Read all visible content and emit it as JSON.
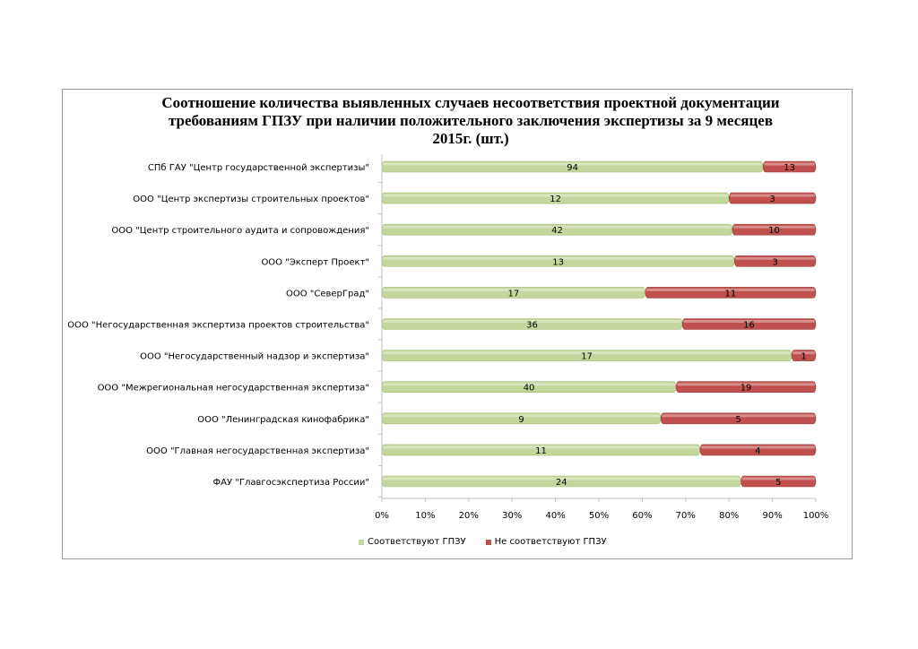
{
  "chart_data": {
    "type": "bar",
    "orientation": "horizontal",
    "stacked": "percent",
    "title_lines": [
      "Соотношение количества выявленных случаев несоответствия проектной документации",
      "требованиям ГПЗУ при наличии положительного заключения экспертизы  за 9 месяцев",
      "2015г.  (шт.)"
    ],
    "categories": [
      "СПб ГАУ \"Центр государственной экспертизы\"",
      "ООО \"Центр экспертизы строительных проектов\"",
      "ООО \"Центр строительного аудита и сопровождения\"",
      "ООО \"Эксперт Проект\"",
      "ООО \"СеверГрад\"",
      "ООО \"Негосударственная экспертиза проектов строительства\"",
      "ООО \"Негосударственный надзор и экспертиза\"",
      "ООО \"Межрегиональная негосударственная экспертиза\"",
      "ООО \"Ленинградская кинофабрика\"",
      "ООО \"Главная негосударственная экспертиза\"",
      "ФАУ \"Главгосэкспертиза России\""
    ],
    "series": [
      {
        "name": "Соответствуют ГПЗУ",
        "color": "#c3d69b",
        "values": [
          94,
          12,
          42,
          13,
          17,
          36,
          17,
          40,
          9,
          11,
          24
        ]
      },
      {
        "name": "Не соответствуют ГПЗУ",
        "color": "#c0504d",
        "values": [
          13,
          3,
          10,
          3,
          11,
          16,
          1,
          19,
          5,
          4,
          5
        ]
      }
    ],
    "x_ticks": [
      "0%",
      "10%",
      "20%",
      "30%",
      "40%",
      "50%",
      "60%",
      "70%",
      "80%",
      "90%",
      "100%"
    ],
    "xlim": [
      0,
      100
    ],
    "grid": false,
    "legend_position": "bottom"
  }
}
